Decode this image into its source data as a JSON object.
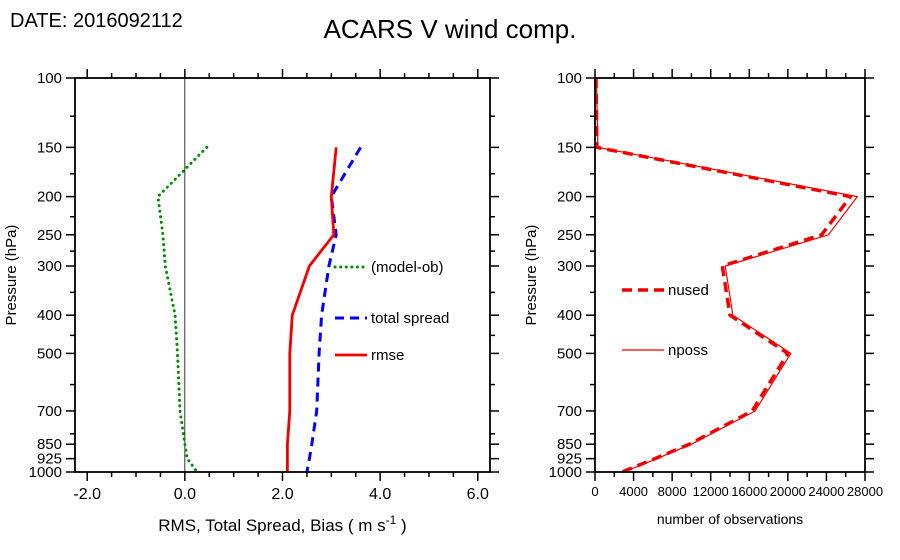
{
  "header": {
    "date_label": "DATE: 2016092112",
    "title": "ACARS V wind comp."
  },
  "chart_data": [
    {
      "id": "stats-panel",
      "type": "line",
      "xlabel_parts": [
        "RMS, Total Spread, Bias ( m s",
        "-1",
        " )"
      ],
      "ylabel": "Pressure (hPa)",
      "yscale": "log",
      "ylim": [
        100,
        1000
      ],
      "yticks": [
        100,
        150,
        200,
        250,
        300,
        400,
        500,
        700,
        850,
        925,
        1000
      ],
      "yminor": [
        125,
        175,
        225,
        275,
        350,
        450,
        600,
        800
      ],
      "xlim": [
        -2.25,
        6.25
      ],
      "xticks": [
        -2.0,
        0.0,
        2.0,
        4.0,
        6.0
      ],
      "xtick_labels": [
        "-2.0",
        "0.0",
        "2.0",
        "4.0",
        "6.0"
      ],
      "xminor_step": 0.5,
      "zero_line_x": 0.0,
      "grid": false,
      "pressure": [
        150,
        200,
        250,
        300,
        400,
        500,
        700,
        850,
        925,
        1000
      ],
      "series": [
        {
          "name": "(model-ob)",
          "color": "#008B00",
          "style": "dotted",
          "values": [
            0.45,
            -0.55,
            -0.45,
            -0.4,
            -0.2,
            -0.15,
            -0.1,
            0.0,
            0.05,
            0.25
          ]
        },
        {
          "name": "total spread",
          "color": "#0000FF",
          "style": "dashed",
          "values": [
            3.6,
            3.0,
            3.1,
            2.95,
            2.8,
            2.75,
            2.7,
            2.6,
            2.55,
            2.5
          ]
        },
        {
          "name": "rmse",
          "color": "#EE0000",
          "style": "solid",
          "values": [
            3.1,
            3.0,
            3.05,
            2.55,
            2.2,
            2.15,
            2.15,
            2.1,
            2.1,
            2.1
          ]
        }
      ],
      "legend_order": [
        "(model-ob)",
        "total spread",
        "rmse"
      ]
    },
    {
      "id": "obs-panel",
      "type": "line",
      "xlabel_parts": [
        "number of observations",
        "",
        ""
      ],
      "ylabel": "Pressure (hPa)",
      "yscale": "log",
      "ylim": [
        100,
        1000
      ],
      "yticks": [
        100,
        150,
        200,
        250,
        300,
        400,
        500,
        700,
        850,
        925,
        1000
      ],
      "yminor": [
        125,
        175,
        225,
        275,
        350,
        450,
        600,
        800
      ],
      "xlim": [
        0,
        28000
      ],
      "xticks": [
        0,
        4000,
        8000,
        12000,
        16000,
        20000,
        24000,
        28000
      ],
      "xtick_labels": [
        "0",
        "4000",
        "8000",
        "12000",
        "16000",
        "20000",
        "24000",
        "28000"
      ],
      "xminor_step": 2000,
      "grid": false,
      "pressure": [
        100,
        150,
        200,
        250,
        300,
        400,
        500,
        700,
        850,
        925,
        1000
      ],
      "series": [
        {
          "name": "nposs",
          "color": "#EE0000",
          "style": "solid-thin",
          "values": [
            150,
            300,
            27200,
            24200,
            13500,
            14300,
            20300,
            16600,
            10000,
            6400,
            3000
          ]
        },
        {
          "name": "nused",
          "color": "#EE0000",
          "style": "dashed-thick",
          "values": [
            100,
            200,
            26500,
            23500,
            13200,
            14000,
            20000,
            16300,
            9800,
            6200,
            2800
          ]
        }
      ],
      "legend_order": [
        "nused",
        "nposs"
      ]
    }
  ]
}
